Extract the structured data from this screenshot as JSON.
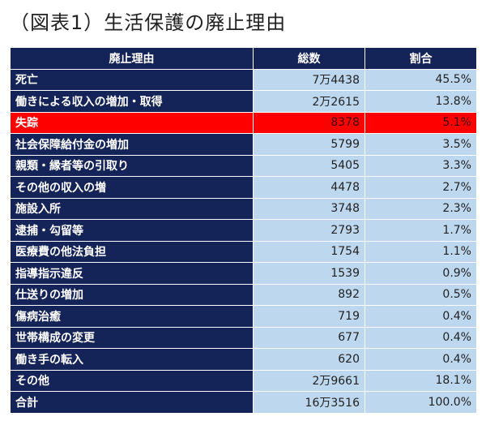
{
  "title": "（図表1）生活保護の廃止理由",
  "chart_data": {
    "type": "table",
    "columns": [
      "廃止理由",
      "総数",
      "割合"
    ],
    "rows": [
      {
        "reason": "死亡",
        "total": "7万4438",
        "share": "45.5%",
        "highlight": false
      },
      {
        "reason": "働きによる収入の増加・取得",
        "total": "2万2615",
        "share": "13.8%",
        "highlight": false
      },
      {
        "reason": "失踪",
        "total": "8378",
        "share": "5.1%",
        "highlight": true
      },
      {
        "reason": "社会保障給付金の増加",
        "total": "5799",
        "share": "3.5%",
        "highlight": false
      },
      {
        "reason": "親類・縁者等の引取り",
        "total": "5405",
        "share": "3.3%",
        "highlight": false
      },
      {
        "reason": "その他の収入の増",
        "total": "4478",
        "share": "2.7%",
        "highlight": false
      },
      {
        "reason": "施設入所",
        "total": "3748",
        "share": "2.3%",
        "highlight": false
      },
      {
        "reason": "逮捕・勾留等",
        "total": "2793",
        "share": "1.7%",
        "highlight": false
      },
      {
        "reason": "医療費の他法負担",
        "total": "1754",
        "share": "1.1%",
        "highlight": false
      },
      {
        "reason": "指導指示違反",
        "total": "1539",
        "share": "0.9%",
        "highlight": false
      },
      {
        "reason": "仕送りの増加",
        "total": "892",
        "share": "0.5%",
        "highlight": false
      },
      {
        "reason": "傷病治癒",
        "total": "719",
        "share": "0.4%",
        "highlight": false
      },
      {
        "reason": "世帯構成の変更",
        "total": "677",
        "share": "0.4%",
        "highlight": false
      },
      {
        "reason": "働き手の転入",
        "total": "620",
        "share": "0.4%",
        "highlight": false
      },
      {
        "reason": "その他",
        "total": "2万9661",
        "share": "18.1%",
        "highlight": false
      },
      {
        "reason": "合計",
        "total": "16万3516",
        "share": "100.0%",
        "highlight": false
      }
    ]
  },
  "colors": {
    "header_bg": "#152458",
    "label_bg": "#152458",
    "value_bg": "#bdd7ee",
    "highlight_bg": "#ff0000"
  }
}
